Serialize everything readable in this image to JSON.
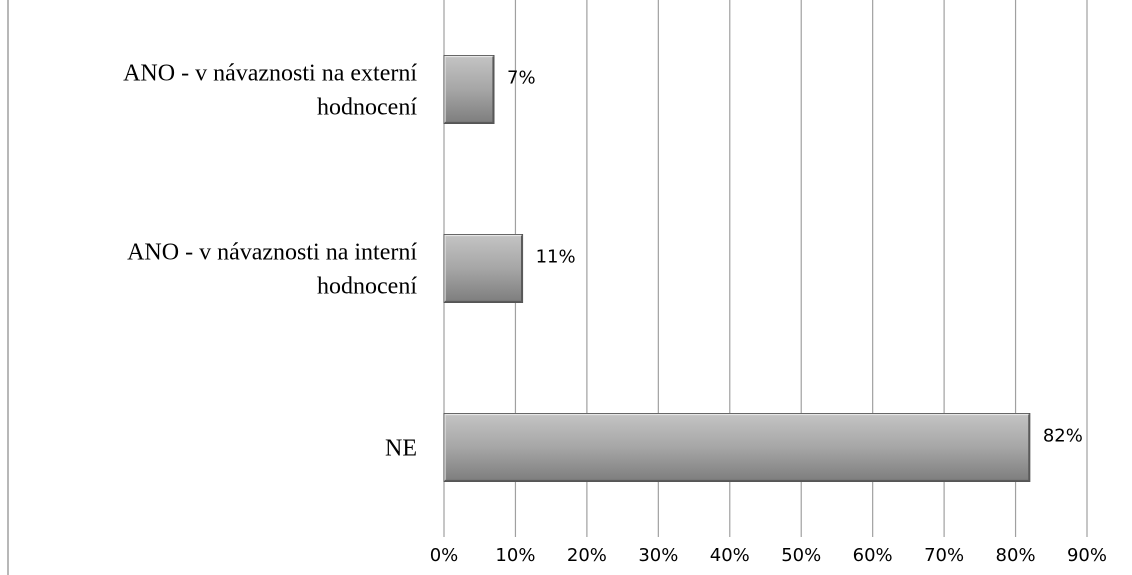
{
  "chart_data": {
    "type": "bar",
    "orientation": "horizontal",
    "categories": [
      [
        "ANO - v návaznosti na externí",
        "hodnocení"
      ],
      [
        "ANO - v návaznosti na interní",
        "hodnocení"
      ],
      [
        "NE"
      ]
    ],
    "values": [
      7,
      11,
      82
    ],
    "value_labels": [
      "7%",
      "11%",
      "82%"
    ],
    "xlim": [
      0,
      90
    ],
    "x_ticks": [
      0,
      10,
      20,
      30,
      40,
      50,
      60,
      70,
      80,
      90
    ],
    "x_tick_labels": [
      "0%",
      "10%",
      "20%",
      "30%",
      "40%",
      "50%",
      "60%",
      "70%",
      "80%",
      "90%"
    ],
    "grid": "vertical",
    "legend": "none",
    "title": "",
    "xlabel": "",
    "ylabel": "",
    "colors": {
      "bar_light": "#c4c4c4",
      "bar_mid": "#a6a6a6",
      "bar_dark": "#7d7d7d",
      "bar_edge": "#555555",
      "grid": "#a0a0a0"
    }
  }
}
